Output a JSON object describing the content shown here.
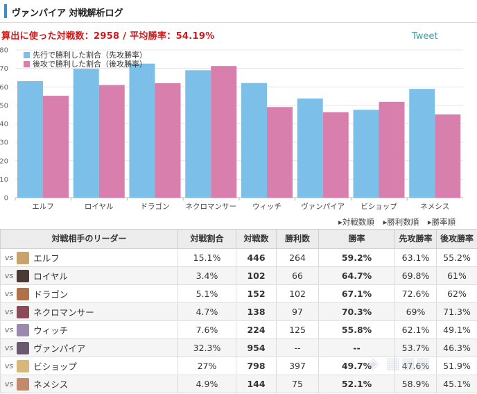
{
  "header": {
    "title": "ヴァンパイア 対戦解析ログ"
  },
  "summary": {
    "text": "算出に使った対戦数：2958 / 平均勝率：54.19%"
  },
  "tweet_label": "Tweet",
  "chart_data": {
    "type": "bar",
    "categories": [
      "エルフ",
      "ロイヤル",
      "ドラゴン",
      "ネクロマンサー",
      "ウィッチ",
      "ヴァンパイア",
      "ビショップ",
      "ネメシス"
    ],
    "series": [
      {
        "name": "先行で勝利した割合（先攻勝率）",
        "color": "#7cc0ea",
        "values": [
          63.1,
          69.8,
          72.6,
          69,
          62.1,
          53.7,
          47.6,
          58.9
        ]
      },
      {
        "name": "後攻で勝利した割合（後攻勝率）",
        "color": "#d87fae",
        "values": [
          55.2,
          61,
          62,
          71.3,
          49.1,
          46.3,
          51.9,
          45.1
        ]
      }
    ],
    "y_ticks": [
      "0",
      "10",
      "20",
      "30",
      "40",
      "50",
      "60",
      "70",
      "80"
    ],
    "ylim": [
      0,
      80
    ],
    "grid": true,
    "legend": "top-left",
    "title": "",
    "xlabel": "",
    "ylabel": ""
  },
  "sort_links": [
    "▸対戦数順",
    "▸勝利数順",
    "▸勝率順"
  ],
  "table": {
    "headers": [
      "対戦相手のリーダー",
      "対戦割合",
      "対戦数",
      "勝利数",
      "勝率",
      "先攻勝率",
      "後攻勝率"
    ],
    "vs_label": "vs",
    "rows": [
      {
        "leader": "エルフ",
        "share": "15.1%",
        "games": "446",
        "wins": "264",
        "rate": "59.2%",
        "first": "63.1%",
        "second": "55.2%",
        "avatar": "#c9a36b",
        "rate_color": "orange"
      },
      {
        "leader": "ロイヤル",
        "share": "3.4%",
        "games": "102",
        "wins": "66",
        "rate": "64.7%",
        "first": "69.8%",
        "second": "61%",
        "avatar": "#4a3a36",
        "rate_color": "orange"
      },
      {
        "leader": "ドラゴン",
        "share": "5.1%",
        "games": "152",
        "wins": "102",
        "rate": "67.1%",
        "first": "72.6%",
        "second": "62%",
        "avatar": "#b0704a",
        "rate_color": "orange"
      },
      {
        "leader": "ネクロマンサー",
        "share": "4.7%",
        "games": "138",
        "wins": "97",
        "rate": "70.3%",
        "first": "69%",
        "second": "71.3%",
        "avatar": "#8a4a5a",
        "rate_color": "red"
      },
      {
        "leader": "ウィッチ",
        "share": "7.6%",
        "games": "224",
        "wins": "125",
        "rate": "55.8%",
        "first": "62.1%",
        "second": "49.1%",
        "avatar": "#9a8ab0",
        "rate_color": "orange"
      },
      {
        "leader": "ヴァンパイア",
        "share": "32.3%",
        "games": "954",
        "wins": "--",
        "rate": "--",
        "first": "53.7%",
        "second": "46.3%",
        "avatar": "#6a5a6e",
        "rate_color": "dark"
      },
      {
        "leader": "ビショップ",
        "share": "27%",
        "games": "798",
        "wins": "397",
        "rate": "49.7%",
        "first": "47.6%",
        "second": "51.9%",
        "avatar": "#d8b87a",
        "rate_color": "dark"
      },
      {
        "leader": "ネメシス",
        "share": "4.9%",
        "games": "144",
        "wins": "75",
        "rate": "52.1%",
        "first": "58.9%",
        "second": "45.1%",
        "avatar": "#c28a6a",
        "rate_color": "orange"
      }
    ]
  }
}
